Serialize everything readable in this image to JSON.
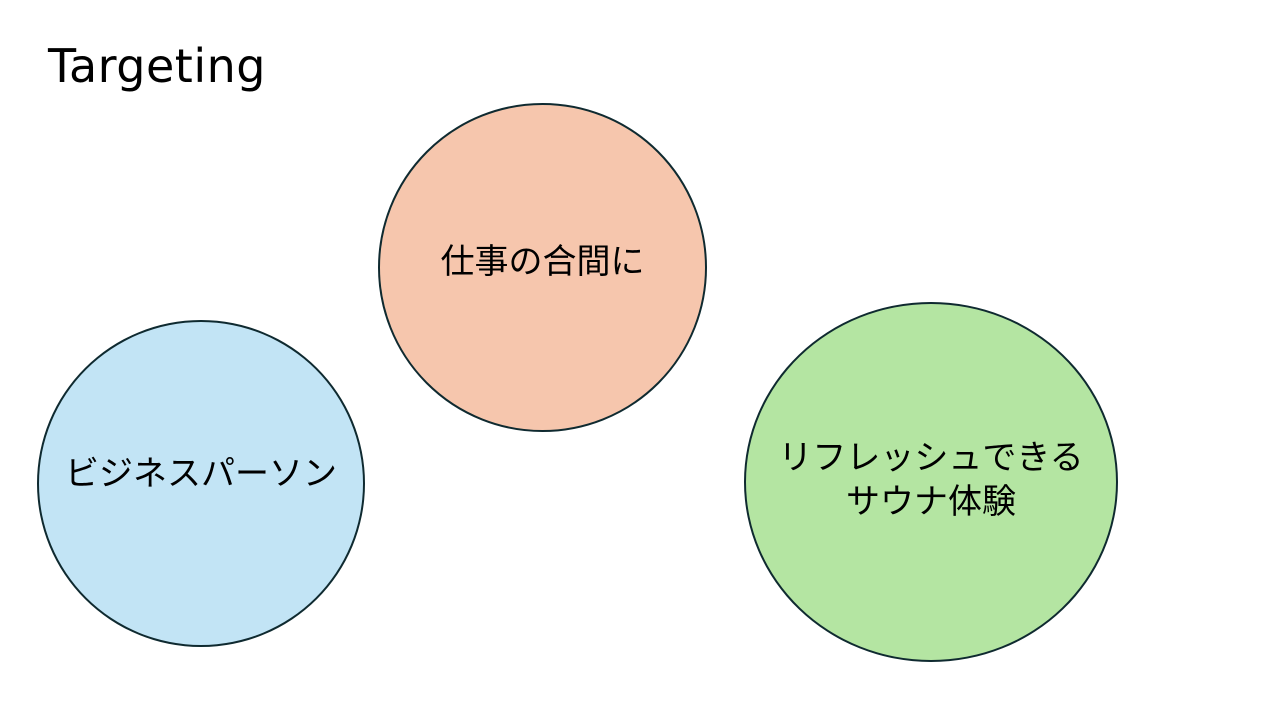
{
  "slide": {
    "title": "Targeting"
  },
  "circles": {
    "work": {
      "label": "仕事の合間に",
      "fill": "#f6c6ad"
    },
    "business": {
      "label": "ビジネスパーソン",
      "fill": "#c2e4f5"
    },
    "sauna": {
      "line1": "リフレッシュできる",
      "line2": "サウナ体験",
      "fill": "#b4e5a2"
    }
  },
  "colors": {
    "outline": "#0f2a30",
    "background": "#ffffff"
  }
}
